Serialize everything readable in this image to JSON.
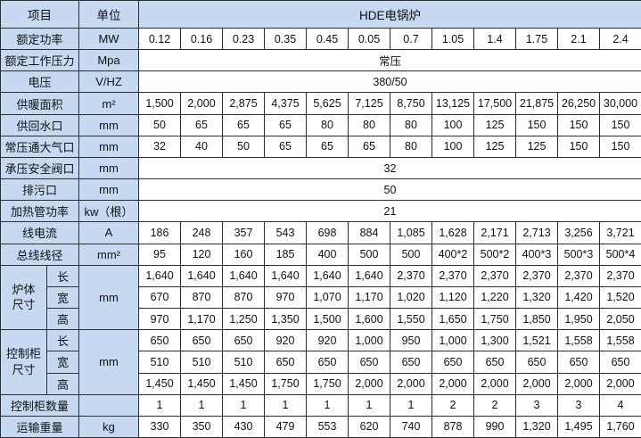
{
  "table": {
    "header": {
      "item": "项目",
      "unit": "单位",
      "product": "HDE电锅炉"
    },
    "column_count": 12,
    "colors": {
      "header_fill": "#c6d9f1",
      "border": "#2e2e2e",
      "cell_fill": "#ffffff",
      "text": "#111111"
    },
    "rows": [
      {
        "kind": "data",
        "label": "额定功率",
        "unit": "MW",
        "values": [
          "0.12",
          "0.16",
          "0.23",
          "0.35",
          "0.45",
          "0.05",
          "0.7",
          "1.05",
          "1.4",
          "1.75",
          "2.1",
          "2.4"
        ]
      },
      {
        "kind": "merged",
        "label": "额定工作压力",
        "unit": "Mpa",
        "value": "常压"
      },
      {
        "kind": "merged",
        "label": "电压",
        "unit": "V/HZ",
        "value": "380/50"
      },
      {
        "kind": "data",
        "label": "供暖面积",
        "unit": "m²",
        "values": [
          "1,500",
          "2,000",
          "2,875",
          "4,375",
          "5,625",
          "7,125",
          "8,750",
          "13,125",
          "17,500",
          "21,875",
          "26,250",
          "30,000"
        ]
      },
      {
        "kind": "data",
        "label": "供回水口",
        "unit": "mm",
        "values": [
          "50",
          "65",
          "65",
          "65",
          "80",
          "80",
          "80",
          "100",
          "125",
          "150",
          "150",
          "150"
        ]
      },
      {
        "kind": "data",
        "label": "常压通大气口",
        "unit": "mm",
        "values": [
          "32",
          "40",
          "50",
          "65",
          "65",
          "65",
          "80",
          "100",
          "125",
          "125",
          "150",
          "150"
        ]
      },
      {
        "kind": "merged",
        "label": "承压安全阀口",
        "unit": "mm",
        "value": "32"
      },
      {
        "kind": "merged",
        "label": "排污口",
        "unit": "mm",
        "value": "50"
      },
      {
        "kind": "merged",
        "label": "加热管功率",
        "unit": "kw（根）",
        "value": "21"
      },
      {
        "kind": "data",
        "label": "线电流",
        "unit": "A",
        "values": [
          "186",
          "248",
          "357",
          "543",
          "698",
          "884",
          "1,085",
          "1,628",
          "2,171",
          "2,713",
          "3,256",
          "3,721"
        ]
      },
      {
        "kind": "data",
        "label": "总线线径",
        "unit": "mm²",
        "values": [
          "95",
          "120",
          "160",
          "185",
          "400",
          "500",
          "500",
          "400*2",
          "500*2",
          "400*3",
          "500*3",
          "500*4"
        ]
      },
      {
        "kind": "group",
        "label": "炉体\n尺寸",
        "unit": "mm",
        "subrows": [
          {
            "sub": "长",
            "values": [
              "1,640",
              "1,640",
              "1,640",
              "1,640",
              "1,640",
              "1,640",
              "2,370",
              "2,370",
              "2,370",
              "2,370",
              "2,370",
              "2,370"
            ]
          },
          {
            "sub": "宽",
            "values": [
              "670",
              "870",
              "870",
              "970",
              "1,070",
              "1,170",
              "1,020",
              "1,120",
              "1,220",
              "1,320",
              "1,420",
              "1,520"
            ]
          },
          {
            "sub": "高",
            "values": [
              "970",
              "1,170",
              "1,250",
              "1,350",
              "1,500",
              "1,600",
              "1,550",
              "1,650",
              "1,750",
              "1,850",
              "1,950",
              "2,050"
            ]
          }
        ]
      },
      {
        "kind": "group",
        "label": "控制柜\n尺寸",
        "unit": "mm",
        "subrows": [
          {
            "sub": "长",
            "values": [
              "650",
              "650",
              "650",
              "920",
              "920",
              "1,000",
              "950",
              "1,000",
              "1,300",
              "1,521",
              "1,558",
              "1,558"
            ]
          },
          {
            "sub": "宽",
            "values": [
              "510",
              "510",
              "510",
              "650",
              "650",
              "650",
              "650",
              "650",
              "650",
              "650",
              "650",
              "650"
            ]
          },
          {
            "sub": "高",
            "values": [
              "1,450",
              "1,450",
              "1,450",
              "1,750",
              "1,750",
              "2,000",
              "2,000",
              "2,000",
              "2,000",
              "2,000",
              "2,000",
              "2,000"
            ]
          }
        ]
      },
      {
        "kind": "data",
        "label": "控制柜数量",
        "unit": "",
        "values": [
          "1",
          "1",
          "1",
          "1",
          "1",
          "1",
          "1",
          "2",
          "2",
          "3",
          "3",
          "4"
        ]
      },
      {
        "kind": "data",
        "label": "运输重量",
        "unit": "kg",
        "values": [
          "330",
          "350",
          "430",
          "479",
          "553",
          "620",
          "740",
          "878",
          "990",
          "1,320",
          "1,495",
          "1,760"
        ]
      }
    ]
  }
}
